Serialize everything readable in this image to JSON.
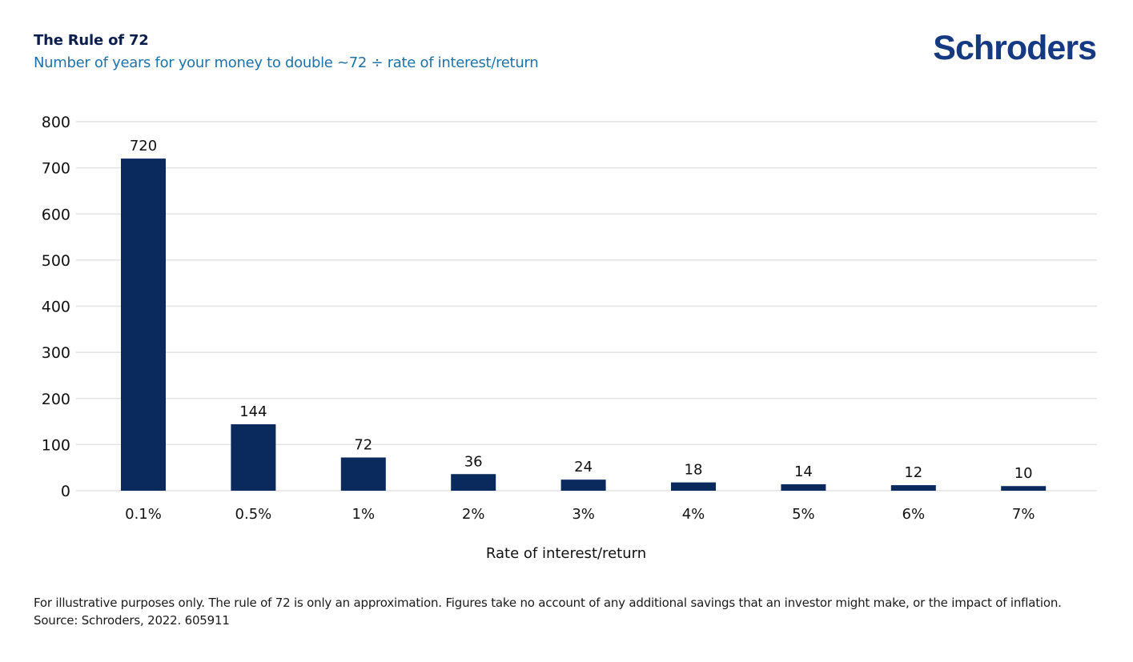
{
  "header": {
    "title": "The Rule of 72",
    "subtitle": "Number of years for your money to double ~72 ÷ rate of interest/return",
    "logo": "Schroders"
  },
  "footnote": "For illustrative purposes only. The rule of 72 is only an approximation. Figures take no account of any additional savings that an investor might make, or the impact of inflation. Source: Schroders, 2022. 605911",
  "colors": {
    "bar": "#0a2a5e",
    "title": "#0d1f4d",
    "subtitle": "#1f72a8",
    "logo": "#163a82",
    "gridline": "#e3e3e3"
  },
  "chart_data": {
    "type": "bar",
    "title": "The Rule of 72",
    "subtitle": "Number of years for your money to double ~72 ÷ rate of interest/return",
    "xlabel": "Rate of interest/return",
    "ylabel": "",
    "categories": [
      "0.1%",
      "0.5%",
      "1%",
      "2%",
      "3%",
      "4%",
      "5%",
      "6%",
      "7%"
    ],
    "values": [
      720,
      144,
      72,
      36,
      24,
      18,
      14,
      12,
      10
    ],
    "data_labels": [
      "720",
      "144",
      "72",
      "36",
      "24",
      "18",
      "14",
      "12",
      "10"
    ],
    "ylim": [
      0,
      800
    ],
    "yticks": [
      0,
      100,
      200,
      300,
      400,
      500,
      600,
      700,
      800
    ],
    "grid": true,
    "legend": "none"
  }
}
